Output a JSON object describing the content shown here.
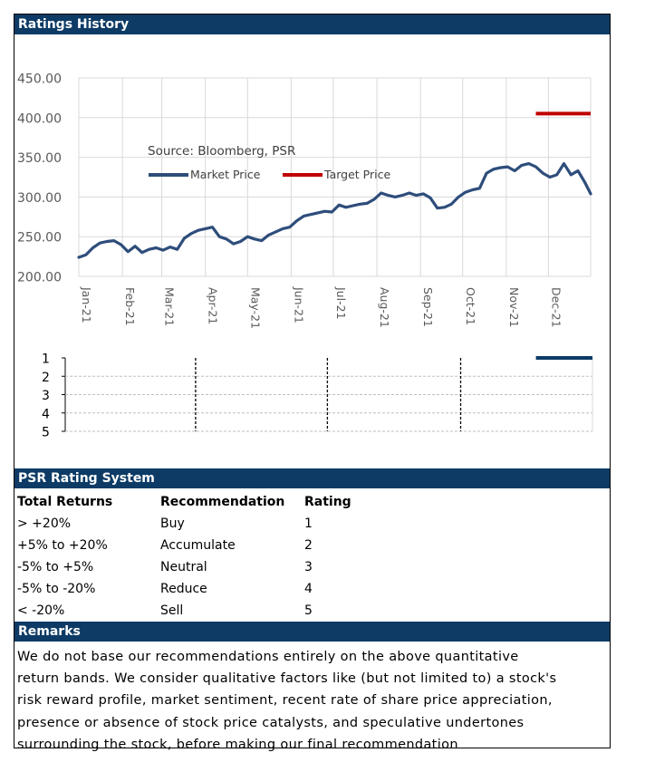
{
  "header": {
    "title": "Ratings History"
  },
  "legend": {
    "source": "Source: Bloomberg, PSR",
    "market_price_label": "Market Price",
    "target_price_label": "Target Price"
  },
  "colors": {
    "header_bg": "#0d3b66",
    "market_price": "#2e4d7b",
    "target_price": "#c00000",
    "rating_line": "#0d3b66"
  },
  "chart_data": [
    {
      "type": "line",
      "title": "",
      "xlabel": "",
      "ylabel": "",
      "ylim": [
        200,
        450
      ],
      "yticks": [
        "450.00",
        "400.00",
        "350.00",
        "300.00",
        "250.00",
        "200.00"
      ],
      "ytick_values": [
        450,
        400,
        350,
        300,
        250,
        200
      ],
      "x_ticks": [
        "Jan-21",
        "Feb-21",
        "Mar-21",
        "Apr-21",
        "May-21",
        "Jun-21",
        "Jul-21",
        "Aug-21",
        "Sep-21",
        "Oct-21",
        "Nov-21",
        "Dec-21"
      ],
      "grid": true,
      "legend": "top-center",
      "series": [
        {
          "name": "Market Price",
          "x": [
            "2021-01-01",
            "2021-01-06",
            "2021-01-11",
            "2021-01-16",
            "2021-01-21",
            "2021-01-26",
            "2021-01-31",
            "2021-02-05",
            "2021-02-10",
            "2021-02-15",
            "2021-02-20",
            "2021-02-25",
            "2021-03-02",
            "2021-03-07",
            "2021-03-12",
            "2021-03-17",
            "2021-03-22",
            "2021-03-27",
            "2021-04-01",
            "2021-04-06",
            "2021-04-11",
            "2021-04-16",
            "2021-04-21",
            "2021-04-26",
            "2021-05-01",
            "2021-05-06",
            "2021-05-11",
            "2021-05-16",
            "2021-05-21",
            "2021-05-26",
            "2021-05-31",
            "2021-06-05",
            "2021-06-10",
            "2021-06-15",
            "2021-06-20",
            "2021-06-25",
            "2021-06-30",
            "2021-07-05",
            "2021-07-10",
            "2021-07-15",
            "2021-07-20",
            "2021-07-25",
            "2021-07-30",
            "2021-08-04",
            "2021-08-09",
            "2021-08-14",
            "2021-08-19",
            "2021-08-24",
            "2021-08-29",
            "2021-09-03",
            "2021-09-08",
            "2021-09-13",
            "2021-09-18",
            "2021-09-23",
            "2021-09-28",
            "2021-10-03",
            "2021-10-08",
            "2021-10-13",
            "2021-10-18",
            "2021-10-23",
            "2021-10-28",
            "2021-11-02",
            "2021-11-07",
            "2021-11-12",
            "2021-11-17",
            "2021-11-22",
            "2021-11-27",
            "2021-12-02",
            "2021-12-07",
            "2021-12-12",
            "2021-12-17",
            "2021-12-22",
            "2021-12-27",
            "2021-12-31"
          ],
          "values": [
            224,
            227,
            236,
            242,
            244,
            245,
            240,
            231,
            238,
            230,
            234,
            236,
            233,
            237,
            234,
            248,
            254,
            258,
            260,
            262,
            250,
            247,
            241,
            244,
            250,
            247,
            245,
            252,
            256,
            260,
            262,
            270,
            276,
            278,
            280,
            282,
            281,
            290,
            287,
            289,
            291,
            292,
            297,
            305,
            302,
            300,
            302,
            305,
            302,
            304,
            299,
            286,
            287,
            291,
            300,
            306,
            309,
            311,
            330,
            335,
            337,
            338,
            333,
            340,
            342,
            338,
            330,
            325,
            328,
            342,
            328,
            333,
            318,
            304
          ]
        },
        {
          "name": "Target Price",
          "x": [
            "2021-11-22",
            "2021-12-31"
          ],
          "values": [
            405,
            405
          ]
        }
      ]
    },
    {
      "type": "line",
      "title": "",
      "ylim": [
        1,
        5
      ],
      "y_inverted": true,
      "yticks": [
        "1",
        "2",
        "3",
        "4",
        "5"
      ],
      "ytick_values": [
        1,
        2,
        3,
        4,
        5
      ],
      "series": [
        {
          "name": "",
          "x": [
            "2021-11-22",
            "2021-12-31"
          ],
          "values": [
            1,
            1
          ]
        }
      ],
      "divider_dates": [
        "2021-04-01",
        "2021-07-01",
        "2021-10-01"
      ]
    }
  ],
  "rating_system": {
    "title": "PSR Rating System",
    "headers": [
      "Total Returns",
      "Recommendation",
      "Rating"
    ],
    "rows": [
      [
        "> +20%",
        "Buy",
        "1"
      ],
      [
        "+5% to +20%",
        "Accumulate",
        "2"
      ],
      [
        "-5% to +5%",
        "Neutral",
        "3"
      ],
      [
        "-5% to -20%",
        "Reduce",
        "4"
      ],
      [
        "< -20%",
        "Sell",
        "5"
      ]
    ]
  },
  "remarks": {
    "title": "Remarks",
    "lines": [
      "We do not base our recommendations entirely on the  above quantitative",
      "return bands.  We consider qualitative factors like (but not limited to) a stock's",
      "risk reward profile, market sentiment, recent rate of share price appreciation,",
      "presence or absence of stock price catalysts, and speculative undertones",
      "surrounding the stock, before making our final recommendation"
    ]
  }
}
